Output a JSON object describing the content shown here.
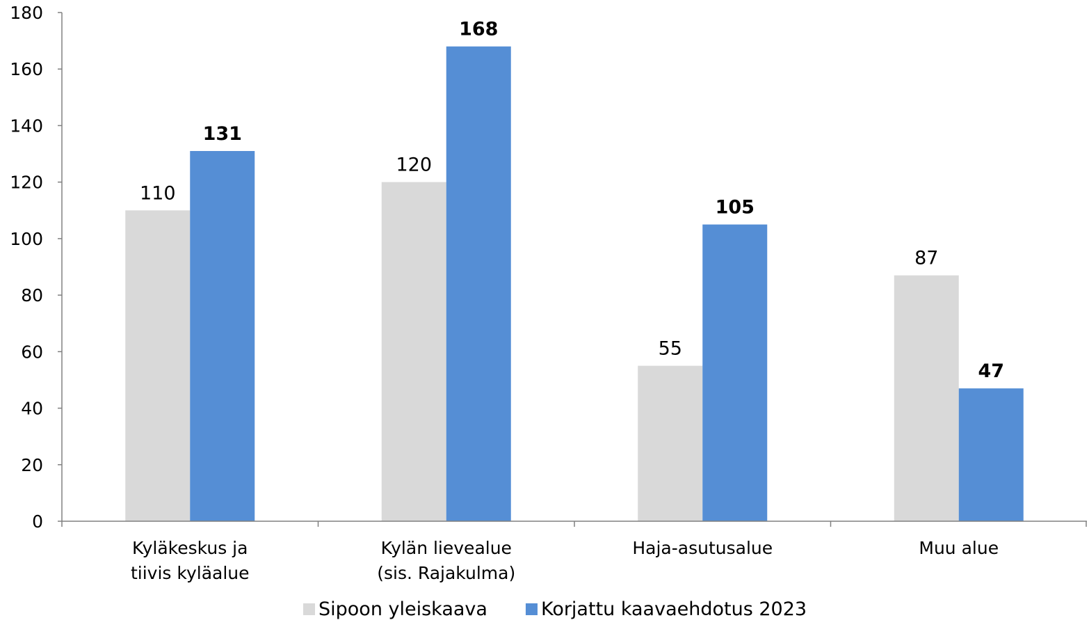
{
  "chart_data": {
    "type": "bar",
    "categories": [
      [
        "Kyläkeskus ja",
        "tiivis kyläalue"
      ],
      [
        "Kylän lievealue",
        "(sis. Rajakulma)"
      ],
      [
        "Haja-asutusalue"
      ],
      [
        "Muu alue"
      ]
    ],
    "series": [
      {
        "name": "Sipoon yleiskaava",
        "values": [
          110,
          120,
          55,
          87
        ],
        "color": "#d9d9d9",
        "label_bold": false
      },
      {
        "name": "Korjattu kaavaehdotus 2023",
        "values": [
          131,
          168,
          105,
          47
        ],
        "color": "#558ed5",
        "label_bold": true
      }
    ],
    "ylim": [
      0,
      180
    ],
    "yticks": [
      0,
      20,
      40,
      60,
      80,
      100,
      120,
      140,
      160,
      180
    ],
    "grid": false,
    "legend": "bottom"
  }
}
